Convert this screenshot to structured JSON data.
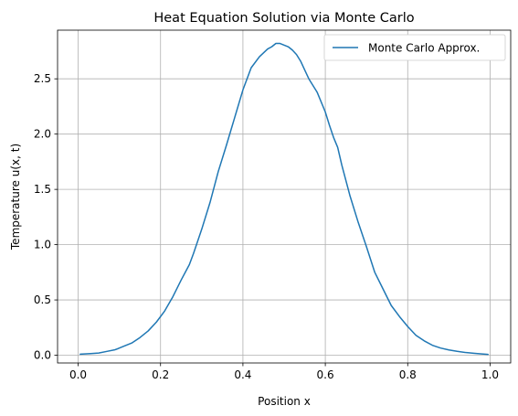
{
  "chart_data": {
    "type": "line",
    "title": "Heat Equation Solution via Monte Carlo",
    "xlabel": "Position x",
    "ylabel": "Temperature u(x, t)",
    "xlim": [
      -0.05,
      1.05
    ],
    "ylim": [
      -0.07,
      2.94
    ],
    "xticks": [
      0.0,
      0.2,
      0.4,
      0.6,
      0.8,
      1.0
    ],
    "xtick_labels": [
      "0.0",
      "0.2",
      "0.4",
      "0.6",
      "0.8",
      "1.0"
    ],
    "yticks": [
      0.0,
      0.5,
      1.0,
      1.5,
      2.0,
      2.5
    ],
    "ytick_labels": [
      "0.0",
      "0.5",
      "1.0",
      "1.5",
      "2.0",
      "2.5"
    ],
    "grid": true,
    "legend_position": "top-right",
    "series": [
      {
        "name": "Monte Carlo Approx.",
        "color": "#1f77b4",
        "x": [
          0.005,
          0.03,
          0.05,
          0.07,
          0.09,
          0.11,
          0.13,
          0.15,
          0.17,
          0.19,
          0.21,
          0.23,
          0.25,
          0.27,
          0.28,
          0.3,
          0.32,
          0.34,
          0.36,
          0.38,
          0.4,
          0.42,
          0.44,
          0.46,
          0.47,
          0.48,
          0.49,
          0.51,
          0.52,
          0.53,
          0.54,
          0.55,
          0.56,
          0.58,
          0.6,
          0.61,
          0.62,
          0.63,
          0.64,
          0.66,
          0.68,
          0.7,
          0.72,
          0.74,
          0.76,
          0.78,
          0.8,
          0.82,
          0.84,
          0.86,
          0.88,
          0.9,
          0.92,
          0.94,
          0.96,
          0.98,
          0.995
        ],
        "y": [
          0.01,
          0.015,
          0.02,
          0.035,
          0.05,
          0.08,
          0.11,
          0.16,
          0.22,
          0.3,
          0.4,
          0.53,
          0.68,
          0.82,
          0.92,
          1.14,
          1.38,
          1.66,
          1.9,
          2.15,
          2.4,
          2.6,
          2.7,
          2.77,
          2.79,
          2.82,
          2.82,
          2.79,
          2.76,
          2.72,
          2.66,
          2.58,
          2.5,
          2.38,
          2.2,
          2.08,
          1.97,
          1.88,
          1.72,
          1.44,
          1.2,
          0.98,
          0.75,
          0.6,
          0.45,
          0.35,
          0.26,
          0.18,
          0.13,
          0.09,
          0.065,
          0.048,
          0.035,
          0.025,
          0.018,
          0.012,
          0.008
        ]
      }
    ]
  }
}
